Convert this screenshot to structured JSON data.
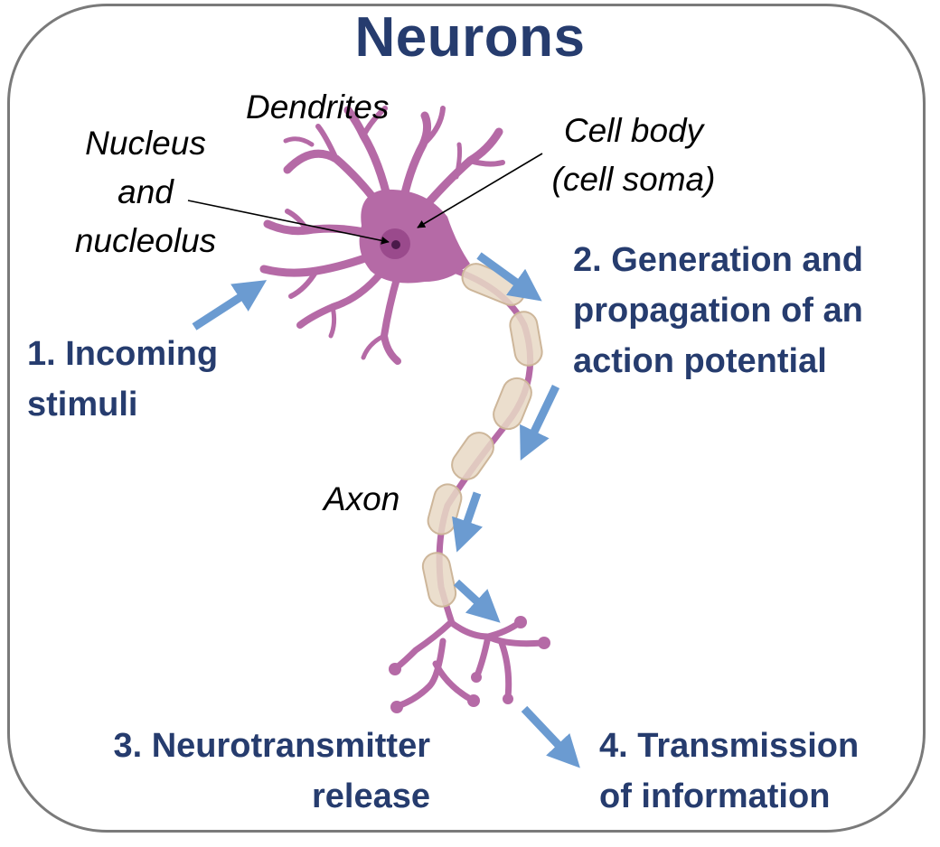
{
  "title": "Neurons",
  "labels": {
    "dendrites": "Dendrites",
    "nucleus": [
      "Nucleus",
      "and",
      "nucleolus"
    ],
    "cell_body": [
      "Cell body",
      "(cell soma)"
    ],
    "axon": "Axon"
  },
  "steps": {
    "incoming": [
      "1. Incoming",
      "stimuli"
    ],
    "generation": [
      "2. Generation and",
      "propagation of an",
      "action potential"
    ],
    "neurotransmitter": [
      "3. Neurotransmitter",
      "release"
    ],
    "transmission": [
      "4. Transmission",
      "of information"
    ]
  },
  "colors": {
    "neuron": "#b56aa6",
    "neuron_dark": "#8a3f7f",
    "myelin": "#e8d8c4",
    "arrow": "#6b9bd1",
    "title": "#263c6e",
    "frame": "#7a7a7a"
  }
}
